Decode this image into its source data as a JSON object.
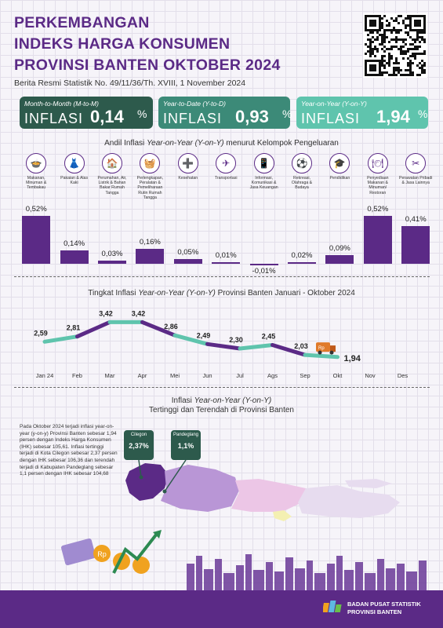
{
  "header": {
    "title_line1": "PERKEMBANGAN",
    "title_line2": "INDEKS HARGA KONSUMEN",
    "title_line3": "PROVINSI BANTEN OKTOBER 2024",
    "subtitle": "Berita Resmi Statistik No. 49/11/36/Th. XVIII, 1 November 2024"
  },
  "summary": [
    {
      "label": "Month-to-Month (M-to-M)",
      "word": "INFLASI",
      "value": "0,14",
      "unit": "%",
      "color": "#2d5a4c"
    },
    {
      "label": "Year-to-Date (Y-to-D)",
      "word": "INFLASI",
      "value": "0,93",
      "unit": "%",
      "color": "#3c8a78"
    },
    {
      "label": "Year-on-Year (Y-on-Y)",
      "word": "INFLASI",
      "value": "1,94",
      "unit": "%",
      "color": "#5fc4ad"
    }
  ],
  "andil": {
    "title_prefix": "Andil Inflasi ",
    "title_italic": "Year-on-Year (Y-on-Y)",
    "title_suffix": " menurut Kelompok Pengeluaran"
  },
  "trend": {
    "title_prefix": "Tingkat Inflasi ",
    "title_italic": "Year-on-Year (Y-on-Y)",
    "title_suffix": " Provinsi Banten Januari - Oktober 2024"
  },
  "map_section": {
    "title_line1_prefix": "Inflasi ",
    "title_line1_italic": "Year-on-Year (Y-on-Y)",
    "title_line2": "Tertinggi dan Terendah di Provinsi Banten",
    "narrative": "Pada Oktober 2024 terjadi inflasi year-on-year (y-on-y) Provinsi Banten sebesar 1,94 persen dengan Indeks Harga Konsumen (IHK) sebesar 105,61. Inflasi tertinggi terjadi di Kota Cilegon sebesar 2,37 persen dengan IHK sebesar 106,36 dan terendah terjadi di Kabupaten Pandeglang sebesar 1,1 persen dengan IHK sebesar 104,68",
    "callouts": [
      {
        "name": "Cilegon",
        "value": "2,37%"
      },
      {
        "name": "Pandeglang",
        "value": "1,1%"
      }
    ]
  },
  "footer": {
    "org_line1": "BADAN PUSAT STATISTIK",
    "org_line2": "PROVINSI BANTEN"
  },
  "rp_tag": "Rp",
  "chart_data": [
    {
      "type": "bar",
      "title": "Andil Inflasi Year-on-Year (Y-on-Y) menurut Kelompok Pengeluaran",
      "categories": [
        "Makanan, Minuman & Tembakau",
        "Pakaian & Alas Kaki",
        "Perumahan, Air, Listrik & Bahan Bakar Rumah Tangga",
        "Perlengkapan, Peralatan & Pemeliharaan Rutin Rumah Tangga",
        "Kesehatan",
        "Transportasi",
        "Informasi, Komunikasi & Jasa Keuangan",
        "Rekreasi, Olahraga & Budaya",
        "Pendidikan",
        "Penyediaan Makanan & Minuman/ Restoran",
        "Perawatan Pribadi & Jasa Lainnya"
      ],
      "values": [
        0.52,
        0.14,
        0.03,
        0.16,
        0.05,
        0.01,
        -0.01,
        0.02,
        0.09,
        0.52,
        0.41
      ],
      "labels": [
        "0,52%",
        "0,14%",
        "0,03%",
        "0,16%",
        "0,05%",
        "0,01%",
        "-0,01%",
        "0,02%",
        "0,09%",
        "0,52%",
        "0,41%"
      ],
      "icons": [
        "food-bowl-icon",
        "dress-icon",
        "house-icon",
        "appliance-icon",
        "first-aid-icon",
        "airplane-icon",
        "smartphone-icon",
        "football-player-icon",
        "graduation-cap-icon",
        "dining-icon",
        "scissors-comb-icon"
      ]
    },
    {
      "type": "line",
      "title": "Tingkat Inflasi Year-on-Year (Y-on-Y) Provinsi Banten Januari - Oktober 2024",
      "categories": [
        "Jan 24",
        "Feb",
        "Mar",
        "Apr",
        "Mei",
        "Jun",
        "Jul",
        "Ags",
        "Sep",
        "Okt",
        "Nov",
        "Des"
      ],
      "values": [
        2.59,
        2.81,
        3.42,
        3.42,
        2.86,
        2.49,
        2.3,
        2.45,
        2.03,
        1.94
      ],
      "labels": [
        "2,59",
        "2,81",
        "3,42",
        "3,42",
        "2,86",
        "2,49",
        "2,30",
        "2,45",
        "2,03",
        "1,94"
      ]
    }
  ]
}
